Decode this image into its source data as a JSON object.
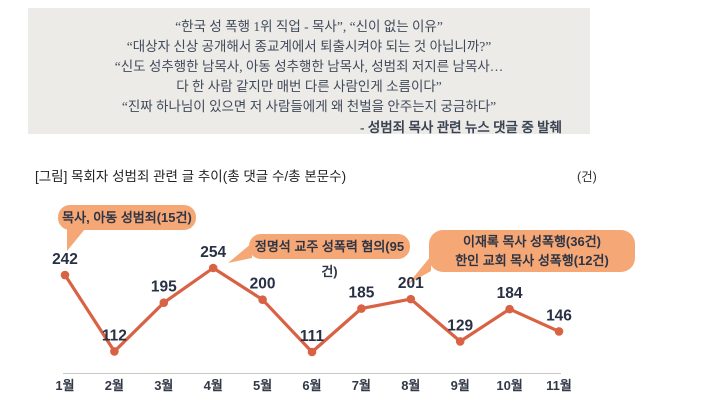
{
  "quote": {
    "lines": [
      "“한국 성 폭행 1위 직업 - 목사”, “신이 없는 이유”",
      "“대상자 신상 공개해서 종교계에서 퇴출시켜야 되는 것 아닙니까?”",
      "“신도 성추행한 남목사, 아동 성추행한 남목사, 성범죄 저지른 남목사…",
      "다 한 사람 같지만 매번 다른 사람인게 소름이다”",
      "“진짜 하나님이 있으면 저 사람들에게 왜 천벌을 안주는지 궁금하다”"
    ],
    "attribution": "- 성범죄 목사 관련 뉴스 댓글 중 발췌"
  },
  "chart_data": {
    "type": "line",
    "title": "[그림] 목회자 성범죄 관련 글 추이(총 댓글 수/총 본문수)",
    "unit_label": "(건)",
    "categories": [
      "1월",
      "2월",
      "3월",
      "4월",
      "5월",
      "6월",
      "7월",
      "8월",
      "9월",
      "10월",
      "11월"
    ],
    "values": [
      242,
      112,
      195,
      254,
      200,
      111,
      185,
      201,
      129,
      184,
      146
    ],
    "ylim": [
      100,
      260
    ],
    "grid": false,
    "line_color": "#d96245",
    "marker_color": "#d96245",
    "value_label_color": "#273044",
    "axis_color": "#c9c9c9",
    "callout_bg": "#f5a876",
    "annotations": [
      {
        "lines": [
          "목사, 아동 성범죄(15건)"
        ],
        "target_month": "1월",
        "target_value": 242
      },
      {
        "lines": [
          "정명석 교주 성폭력 혐의(95건)"
        ],
        "target_month": "4월",
        "target_value": 254
      },
      {
        "lines": [
          "이재록 목사 성폭행(36건)",
          "한인 교회 목사 성폭행(12건)"
        ],
        "target_month": "8월",
        "target_value": 201
      }
    ]
  }
}
